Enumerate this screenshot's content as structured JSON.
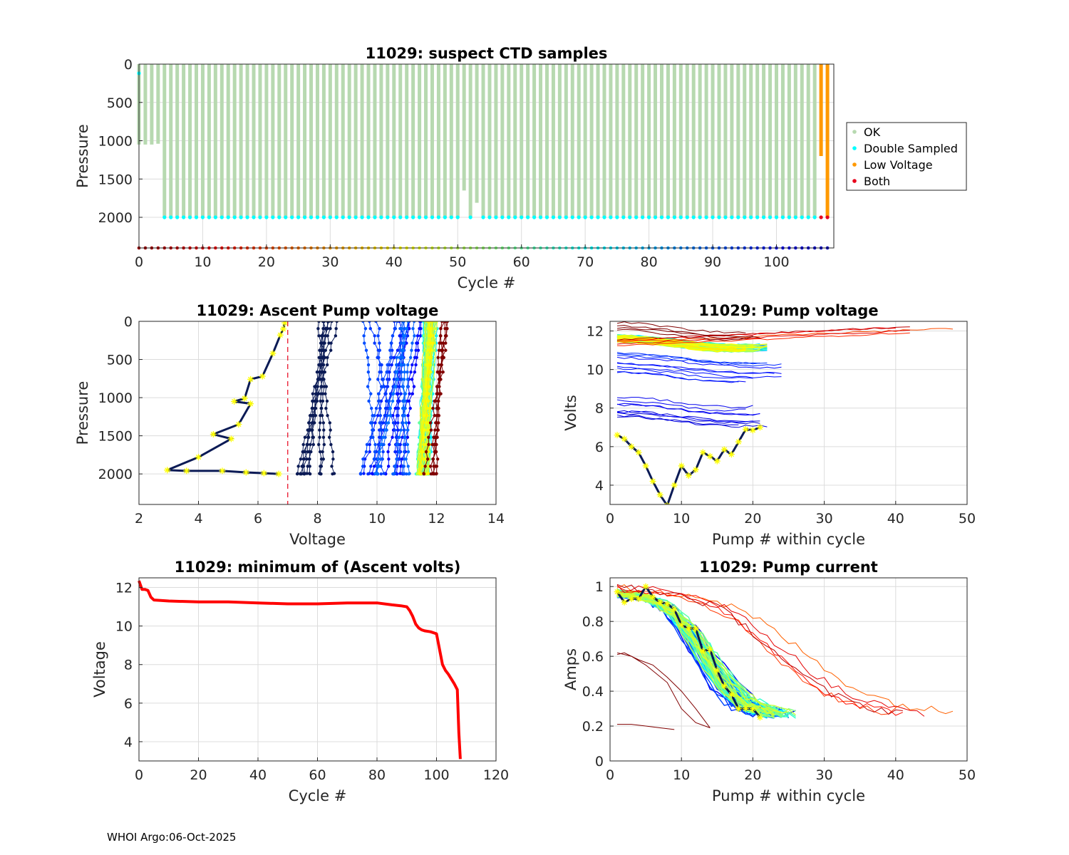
{
  "footer": "WHOI Argo:06-Oct-2025",
  "colors": {
    "ok": "#b7d9b0",
    "double": "#00ffff",
    "low": "#ff9900",
    "both": "#e8001b",
    "gridline": "#dcdcdc",
    "axis": "#262626",
    "yellow": "#ffff00",
    "navy": "#0a1a55",
    "maroon": "#800000"
  },
  "chart_data": [
    {
      "id": "suspect",
      "type": "scatter",
      "title": "11029: suspect CTD samples",
      "xlabel": "Cycle #",
      "ylabel": "Pressure",
      "xlim": [
        0,
        109
      ],
      "ylim": [
        2400,
        0
      ],
      "xticks": [
        0,
        10,
        20,
        30,
        40,
        50,
        60,
        70,
        80,
        90,
        100
      ],
      "yticks": [
        0,
        500,
        1000,
        1500,
        2000
      ],
      "legend": {
        "position": "outside-right",
        "entries": [
          {
            "label": "OK",
            "color": "#b7d9b0"
          },
          {
            "label": "Double Sampled",
            "color": "#00ffff"
          },
          {
            "label": "Low Voltage",
            "color": "#ff9900"
          },
          {
            "label": "Both",
            "color": "#e8001b"
          }
        ]
      },
      "max_pressure": {
        "default": 2000,
        "0": 1050,
        "1": 1050,
        "2": 1050,
        "3": 1040,
        "51": 1650,
        "53": 1810,
        "107": 1200
      },
      "double_sampled_cycles": "4-50,52,54-106",
      "low_voltage_cycles": [
        107,
        108
      ],
      "cycle_marker_row_pressure": 2400
    },
    {
      "id": "ascent",
      "type": "line",
      "title": "11029: Ascent Pump voltage",
      "xlabel": "Voltage",
      "ylabel": "Pressure",
      "xlim": [
        2,
        14
      ],
      "ylim": [
        2400,
        0
      ],
      "xticks": [
        2,
        4,
        6,
        8,
        10,
        12,
        14
      ],
      "yticks": [
        0,
        500,
        1000,
        1500,
        2000
      ],
      "threshold_voltage": 7,
      "last_cycle_profile": {
        "v": [
          6.9,
          6.85,
          6.75,
          6.5,
          6.15,
          5.75,
          5.55,
          5.2,
          5.75,
          5.35,
          4.5,
          5.1,
          4.0,
          2.95,
          3.6,
          4.8,
          5.6,
          6.2,
          6.7
        ],
        "p": [
          20,
          100,
          180,
          420,
          720,
          760,
          1010,
          1050,
          1080,
          1350,
          1480,
          1540,
          1780,
          1950,
          1960,
          1960,
          1980,
          1990,
          2000
        ]
      },
      "families": [
        {
          "name": "low",
          "v_top_range": [
            7.6,
            8.7
          ],
          "v_bottom_range": [
            6.9,
            8.7
          ],
          "color": "#0a1a55",
          "count": 9
        },
        {
          "name": "mid",
          "v_top_range": [
            9.5,
            11.5
          ],
          "v_bottom_range": [
            9.4,
            11.2
          ],
          "color": "#1530c8",
          "count": 18
        },
        {
          "name": "bulk",
          "v_top_range": [
            11.6,
            12.0
          ],
          "v_bottom_range": [
            11.35,
            11.75
          ],
          "color": "#40a0ff",
          "count": 60
        },
        {
          "name": "early",
          "v_top_range": [
            12.1,
            12.4
          ],
          "v_bottom_range": [
            11.5,
            12.0
          ],
          "color": "#800000",
          "count": 5
        }
      ]
    },
    {
      "id": "pumpvolt",
      "type": "line",
      "title": "11029: Pump voltage",
      "xlabel": "Pump # within cycle",
      "ylabel": "Volts",
      "xlim": [
        0,
        50
      ],
      "ylim": [
        3,
        12.5
      ],
      "xticks": [
        0,
        10,
        20,
        30,
        40,
        50
      ],
      "yticks": [
        4,
        6,
        8,
        10,
        12
      ],
      "last_cycle_series": {
        "x": [
          1,
          2,
          3,
          4,
          5,
          6,
          7,
          8,
          9,
          10,
          11,
          12,
          13,
          14,
          15,
          16,
          17,
          18,
          19,
          20,
          21
        ],
        "y": [
          6.6,
          6.4,
          6.0,
          5.7,
          5.0,
          4.2,
          3.5,
          2.95,
          4.0,
          5.0,
          4.5,
          4.8,
          5.7,
          5.5,
          5.25,
          5.85,
          5.6,
          6.25,
          6.9,
          6.85,
          7.0
        ]
      },
      "bands": [
        {
          "name": "bulk",
          "y_center": 11.35,
          "count": 70,
          "length_range": [
            18,
            22
          ]
        },
        {
          "name": "early",
          "y_center": 11.8,
          "count": 5,
          "length_range": [
            40,
            50
          ]
        },
        {
          "name": "top",
          "y_center": 12.0,
          "count": 4,
          "length_range": [
            18,
            22
          ]
        },
        {
          "name": "mid",
          "y_center": 10.1,
          "count": 10,
          "length_range": [
            18,
            25
          ]
        },
        {
          "name": "low",
          "y_center": 7.8,
          "count": 9,
          "length_range": [
            18,
            22
          ]
        }
      ]
    },
    {
      "id": "minvolt",
      "type": "line",
      "title": "11029: minimum of (Ascent volts)",
      "xlabel": "Cycle #",
      "ylabel": "Voltage",
      "xlim": [
        0,
        120
      ],
      "ylim": [
        3,
        12.5
      ],
      "xticks": [
        0,
        20,
        40,
        60,
        80,
        100,
        120
      ],
      "yticks": [
        4,
        6,
        8,
        10,
        12
      ],
      "x": [
        0,
        1,
        2,
        3,
        4,
        5,
        10,
        20,
        30,
        40,
        50,
        60,
        70,
        80,
        85,
        88,
        90,
        91,
        92,
        93,
        94,
        95,
        96,
        98,
        100,
        101,
        102,
        103,
        104,
        106,
        107,
        107.5,
        108
      ],
      "y": [
        12.35,
        11.9,
        11.9,
        11.85,
        11.5,
        11.35,
        11.3,
        11.25,
        11.25,
        11.2,
        11.15,
        11.15,
        11.2,
        11.2,
        11.1,
        11.05,
        11.0,
        10.8,
        10.5,
        10.1,
        9.9,
        9.8,
        9.75,
        9.7,
        9.6,
        8.8,
        8.0,
        7.7,
        7.5,
        7.0,
        6.7,
        4.5,
        3.1
      ]
    },
    {
      "id": "pumpcurrent",
      "type": "line",
      "title": "11029: Pump current",
      "xlabel": "Pump # within cycle",
      "ylabel": "Amps",
      "xlim": [
        0,
        50
      ],
      "ylim": [
        0,
        1.05
      ],
      "xticks": [
        0,
        10,
        20,
        30,
        40,
        50
      ],
      "yticks": [
        0,
        0.2,
        0.4,
        0.6,
        0.8,
        1
      ],
      "last_cycle_series": {
        "x": [
          1,
          2,
          3,
          4,
          5,
          6,
          7,
          8,
          9,
          10,
          11,
          12,
          13,
          14,
          15,
          16,
          17,
          18,
          19,
          20,
          21
        ],
        "y": [
          0.97,
          0.91,
          0.93,
          0.93,
          1.0,
          0.94,
          0.91,
          0.9,
          0.87,
          0.78,
          0.76,
          0.76,
          0.63,
          0.64,
          0.52,
          0.43,
          0.38,
          0.3,
          0.3,
          0.3,
          0.25
        ]
      },
      "bands": [
        {
          "name": "bulk",
          "count": 70,
          "start_amps": 0.97,
          "end_amps": 0.25,
          "length_range": [
            20,
            26
          ]
        },
        {
          "name": "late",
          "count": 5,
          "start_amps": 1.0,
          "end_amps": 0.26,
          "length_range": [
            40,
            50
          ]
        },
        {
          "name": "early-low",
          "series": [
            {
              "x": [
                1,
                3,
                5,
                8,
                10,
                12,
                14
              ],
              "y": [
                0.62,
                0.6,
                0.55,
                0.45,
                0.3,
                0.22,
                0.19
              ]
            },
            {
              "x": [
                1,
                2,
                4,
                6,
                8,
                10,
                12,
                14
              ],
              "y": [
                0.61,
                0.62,
                0.58,
                0.55,
                0.48,
                0.4,
                0.3,
                0.19
              ]
            },
            {
              "x": [
                1,
                3,
                5,
                7,
                9
              ],
              "y": [
                0.21,
                0.21,
                0.2,
                0.19,
                0.18
              ]
            }
          ]
        }
      ]
    }
  ]
}
